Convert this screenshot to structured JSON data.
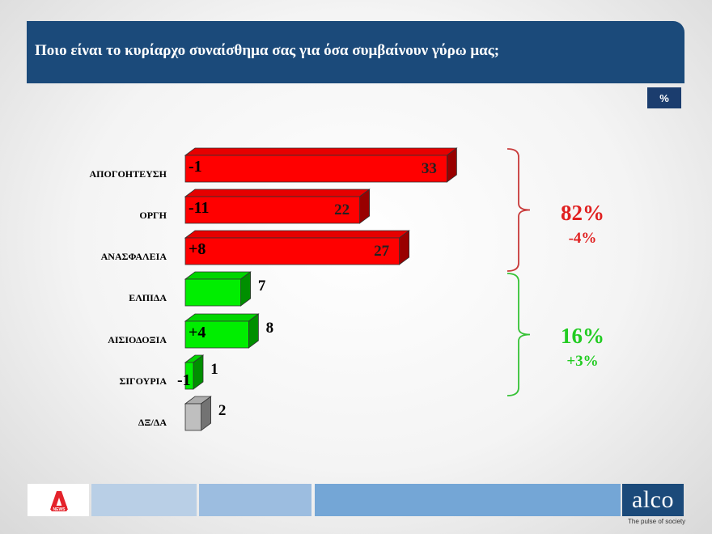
{
  "header": {
    "title": "Ποιο είναι το κυρίαρχο συναίσθημα σας για όσα συμβαίνουν γύρω μας;"
  },
  "unit_badge": "%",
  "chart_data": {
    "type": "bar",
    "orientation": "horizontal",
    "categories": [
      "ΑΠΟΓΟΗΤΕΥΣΗ",
      "ΟΡΓΗ",
      "ΑΝΑΣΦΑΛΕΙΑ",
      "ΕΛΠΙΔΑ",
      "ΑΙΣΙΟΔΟΞΙΑ",
      "ΣΙΓΟΥΡΙΑ",
      "ΔΞ/ΔΑ"
    ],
    "values": [
      33,
      22,
      27,
      7,
      8,
      1,
      2
    ],
    "changes": [
      "-1",
      "-11",
      "+8",
      "",
      "+4",
      "-1",
      ""
    ],
    "colors": [
      "#ff0000",
      "#ff0000",
      "#ff0000",
      "#00ee00",
      "#00ee00",
      "#00ee00",
      "#bfbfbf"
    ],
    "xlim": [
      0,
      33
    ],
    "groups": [
      {
        "total": "82%",
        "change": "-4%",
        "color": "#e02020"
      },
      {
        "total": "16%",
        "change": "+3%",
        "color": "#22cc22"
      }
    ]
  },
  "footer": {
    "brand": "alco",
    "tagline": "The pulse of society",
    "news_badge": "NEWS"
  }
}
